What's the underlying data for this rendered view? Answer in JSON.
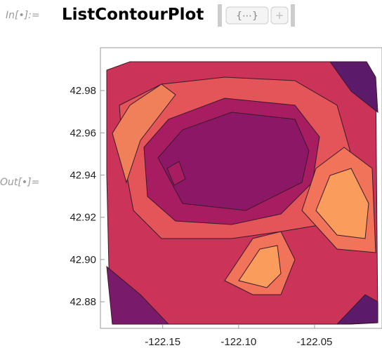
{
  "input_label": "In[•]:=",
  "code": "ListContourPlot",
  "placeholder": "{⋯}",
  "output_label": "Out[•]=",
  "chart_data": {
    "type": "contour",
    "xlim": [
      -122.191,
      -122.0056
    ],
    "ylim": [
      42.8674,
      43.0003
    ],
    "xticks": [
      -122.15,
      {
        "value": -122.1,
        "label": "-122.10"
      },
      -122.05
    ],
    "yticks": [
      {
        "value": 42.88,
        "label": "42.88"
      },
      {
        "value": 42.9,
        "label": "42.90"
      },
      42.92,
      42.94,
      42.96,
      42.98
    ]
  }
}
